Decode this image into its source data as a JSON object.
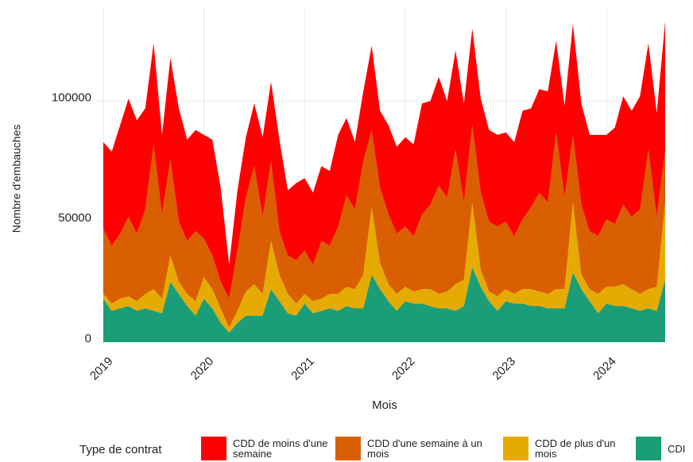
{
  "chart_data": {
    "type": "stacked_area",
    "x_label": "Mois",
    "y_label": "Nombre d'embauches",
    "legend_title": "Type de contrat",
    "x": [
      "2019-01",
      "2019-02",
      "2019-03",
      "2019-04",
      "2019-05",
      "2019-06",
      "2019-07",
      "2019-08",
      "2019-09",
      "2019-10",
      "2019-11",
      "2019-12",
      "2020-01",
      "2020-02",
      "2020-03",
      "2020-04",
      "2020-05",
      "2020-06",
      "2020-07",
      "2020-08",
      "2020-09",
      "2020-10",
      "2020-11",
      "2020-12",
      "2021-01",
      "2021-02",
      "2021-03",
      "2021-04",
      "2021-05",
      "2021-06",
      "2021-07",
      "2021-08",
      "2021-09",
      "2021-10",
      "2021-11",
      "2021-12",
      "2022-01",
      "2022-02",
      "2022-03",
      "2022-04",
      "2022-05",
      "2022-06",
      "2022-07",
      "2022-08",
      "2022-09",
      "2022-10",
      "2022-11",
      "2022-12",
      "2023-01",
      "2023-02",
      "2023-03",
      "2023-04",
      "2023-05",
      "2023-06",
      "2023-07",
      "2023-08",
      "2023-09",
      "2023-10",
      "2023-11",
      "2023-12",
      "2024-01",
      "2024-02",
      "2024-03",
      "2024-04",
      "2024-05",
      "2024-06",
      "2024-07",
      "2024-08"
    ],
    "series": [
      {
        "name": "CDD de moins d'une semaine",
        "color": "#ff0000",
        "values": [
          36000,
          39000,
          45000,
          49000,
          47000,
          42000,
          42000,
          33000,
          42000,
          47000,
          42000,
          42000,
          43000,
          48000,
          39000,
          14000,
          25000,
          25000,
          26000,
          33000,
          33000,
          38000,
          27000,
          32000,
          30000,
          30000,
          31000,
          31000,
          38000,
          32000,
          28000,
          29000,
          35000,
          32000,
          37000,
          36000,
          37000,
          38000,
          46000,
          43000,
          45000,
          40000,
          41000,
          41000,
          40000,
          39000,
          38000,
          38000,
          37000,
          39000,
          45000,
          41000,
          43000,
          46000,
          38000,
          38000,
          46000,
          42000,
          40000,
          42000,
          35000,
          40000,
          45000,
          44000,
          47000,
          44000,
          43000,
          53000
        ]
      },
      {
        "name": "CDD d'une semaine à un mois",
        "color": "#d95f02",
        "values": [
          27000,
          24000,
          27000,
          33000,
          28000,
          35000,
          60000,
          35000,
          40000,
          25000,
          22000,
          29000,
          16000,
          14000,
          11000,
          12000,
          25000,
          39000,
          49000,
          32000,
          33000,
          18000,
          16000,
          18000,
          18000,
          15000,
          24000,
          20000,
          28000,
          38000,
          33000,
          47000,
          32000,
          31000,
          29000,
          25000,
          25000,
          23000,
          31000,
          35000,
          45000,
          39000,
          56000,
          32000,
          32000,
          32000,
          29000,
          29000,
          28000,
          24000,
          29000,
          34000,
          41000,
          38000,
          65000,
          38000,
          28000,
          29000,
          24000,
          24000,
          28000,
          26000,
          33000,
          30000,
          35000,
          58000,
          29000,
          22000
        ]
      },
      {
        "name": "CDD de plus d'un mois",
        "color": "#e6ab02",
        "values": [
          2000,
          3000,
          4000,
          4000,
          4000,
          6000,
          9000,
          6000,
          11000,
          5000,
          5000,
          6000,
          9000,
          8000,
          6000,
          2000,
          5000,
          10000,
          13000,
          9000,
          20000,
          11000,
          8000,
          5000,
          4000,
          5000,
          5000,
          6000,
          7000,
          8000,
          8000,
          14000,
          28000,
          11000,
          7000,
          7000,
          6000,
          5000,
          6000,
          7000,
          6000,
          7000,
          11000,
          11000,
          27000,
          7000,
          4000,
          6000,
          5000,
          4000,
          6000,
          7000,
          6000,
          6000,
          8000,
          8000,
          29000,
          6000,
          5000,
          8000,
          7000,
          8000,
          9000,
          8000,
          7000,
          8000,
          10000,
          32000
        ]
      },
      {
        "name": "CDI",
        "color": "#1b9e77",
        "values": [
          18000,
          13000,
          14000,
          15000,
          13000,
          14000,
          13000,
          12000,
          25000,
          20000,
          15000,
          11000,
          18000,
          14000,
          8000,
          4000,
          8000,
          11000,
          11000,
          11000,
          22000,
          17000,
          12000,
          11000,
          16000,
          12000,
          13000,
          14000,
          13000,
          15000,
          14000,
          14000,
          28000,
          22000,
          17000,
          13000,
          17000,
          16000,
          16000,
          15000,
          14000,
          14000,
          13000,
          15000,
          31000,
          23000,
          17000,
          13000,
          17000,
          16000,
          16000,
          15000,
          15000,
          14000,
          14000,
          14000,
          29000,
          22000,
          17000,
          12000,
          16000,
          15000,
          15000,
          14000,
          13000,
          14000,
          13000,
          26000
        ]
      }
    ],
    "xlim": [
      "2019-01",
      "2024-08"
    ],
    "xticks": [
      "2019",
      "2020",
      "2021",
      "2022",
      "2023",
      "2024"
    ],
    "ylim": [
      0,
      137000
    ],
    "yticks": [
      0,
      50000,
      100000
    ],
    "grid": true,
    "legend_position": "bottom"
  }
}
